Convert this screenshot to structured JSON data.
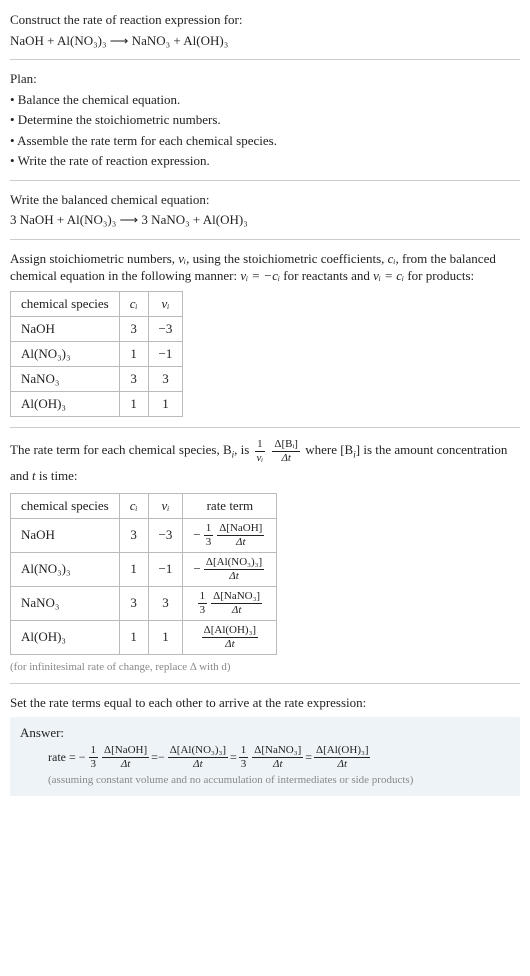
{
  "header": {
    "line1": "Construct the rate of reaction expression for:",
    "line2": "NaOH + Al(NO₃)₃  ⟶  NaNO₃ + Al(OH)₃"
  },
  "plan": {
    "title": "Plan:",
    "items": [
      "• Balance the chemical equation.",
      "• Determine the stoichiometric numbers.",
      "• Assemble the rate term for each chemical species.",
      "• Write the rate of reaction expression."
    ]
  },
  "balanced": {
    "line1": "Write the balanced chemical equation:",
    "line2": "3 NaOH + Al(NO₃)₃  ⟶  3 NaNO₃ + Al(OH)₃"
  },
  "stoich": {
    "intro_a": "Assign stoichiometric numbers, ",
    "intro_b": ", using the stoichiometric coefficients, ",
    "intro_c": ", from the balanced chemical equation in the following manner: ",
    "intro_d": " for reactants and ",
    "intro_e": " for products:",
    "nu_i": "νᵢ",
    "c_i": "cᵢ",
    "eq1": "νᵢ = −cᵢ",
    "eq2": "νᵢ = cᵢ",
    "cols": [
      "chemical species",
      "cᵢ",
      "νᵢ"
    ],
    "rows": [
      [
        "NaOH",
        "3",
        "−3"
      ],
      [
        "Al(NO₃)₃",
        "1",
        "−1"
      ],
      [
        "NaNO₃",
        "3",
        "3"
      ],
      [
        "Al(OH)₃",
        "1",
        "1"
      ]
    ]
  },
  "rateterm": {
    "intro_a": "The rate term for each chemical species, B",
    "intro_b": ", is ",
    "intro_c": " where [B",
    "intro_d": "] is the amount concentration and ",
    "intro_e": " is time:",
    "t": "t",
    "i": "i",
    "cols": [
      "chemical species",
      "cᵢ",
      "νᵢ",
      "rate term"
    ],
    "rows": [
      {
        "sp": "NaOH",
        "c": "3",
        "nu": "−3",
        "neg": "−",
        "fnum": "1",
        "fden": "3",
        "dnum": "Δ[NaOH]",
        "dden": "Δt"
      },
      {
        "sp": "Al(NO₃)₃",
        "c": "1",
        "nu": "−1",
        "neg": "−",
        "fnum": "",
        "fden": "",
        "dnum": "Δ[Al(NO₃)₃]",
        "dden": "Δt"
      },
      {
        "sp": "NaNO₃",
        "c": "3",
        "nu": "3",
        "neg": "",
        "fnum": "1",
        "fden": "3",
        "dnum": "Δ[NaNO₃]",
        "dden": "Δt"
      },
      {
        "sp": "Al(OH)₃",
        "c": "1",
        "nu": "1",
        "neg": "",
        "fnum": "",
        "fden": "",
        "dnum": "Δ[Al(OH)₃]",
        "dden": "Δt"
      }
    ],
    "note": "(for infinitesimal rate of change, replace Δ with d)"
  },
  "final": {
    "intro": "Set the rate terms equal to each other to arrive at the rate expression:",
    "answer_label": "Answer:",
    "rate_label": "rate = ",
    "terms": [
      {
        "neg": "−",
        "fnum": "1",
        "fden": "3",
        "dnum": "Δ[NaOH]",
        "dden": "Δt"
      },
      {
        "neg": "−",
        "fnum": "",
        "fden": "",
        "dnum": "Δ[Al(NO₃)₃]",
        "dden": "Δt"
      },
      {
        "neg": "",
        "fnum": "1",
        "fden": "3",
        "dnum": "Δ[NaNO₃]",
        "dden": "Δt"
      },
      {
        "neg": "",
        "fnum": "",
        "fden": "",
        "dnum": "Δ[Al(OH)₃]",
        "dden": "Δt"
      }
    ],
    "eq": " = ",
    "assume": "(assuming constant volume and no accumulation of intermediates or side products)"
  },
  "big_frac": {
    "outer_num": "1",
    "outer_den": "νᵢ",
    "inner_num": "Δ[Bᵢ]",
    "inner_den": "Δt"
  }
}
